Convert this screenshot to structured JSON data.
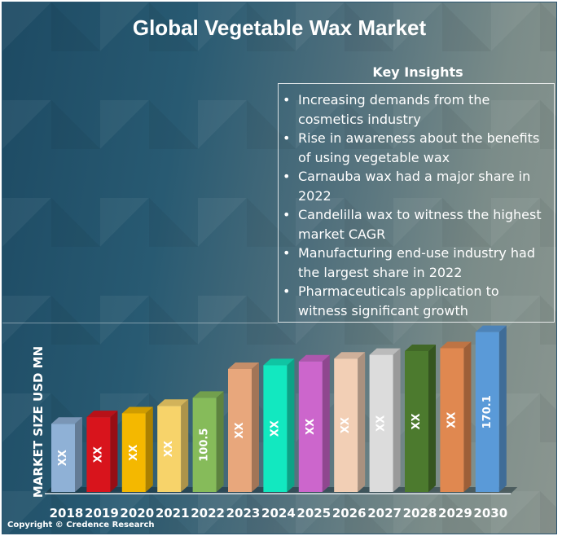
{
  "title": "Global Vegetable Wax Market",
  "key_insights": {
    "heading": "Key Insights",
    "items": [
      "Increasing demands from the cosmetics industry",
      "Rise in awareness about the benefits of using vegetable wax",
      "Carnauba wax had a major share in 2022",
      "Candelilla wax to witness the highest market CAGR",
      "Manufacturing end-use industry had the largest share in 2022",
      "Pharmaceuticals application to witness significant growth"
    ]
  },
  "copyright": "Copyright © Credence Research",
  "chart_data": {
    "type": "bar",
    "style": "3d",
    "title": "",
    "xlabel": "",
    "ylabel": "MARKET SIZE USD MN",
    "categories": [
      "2018",
      "2019",
      "2020",
      "2021",
      "2022",
      "2023",
      "2024",
      "2025",
      "2026",
      "2027",
      "2028",
      "2029",
      "2030"
    ],
    "values": [
      73,
      80,
      84,
      92,
      100.5,
      131,
      135,
      139,
      142,
      146,
      150,
      153,
      170.1
    ],
    "data_labels": [
      "XX",
      "XX",
      "XX",
      "XX",
      "100.5",
      "XX",
      "XX",
      "XX",
      "XX",
      "XX",
      "XX",
      "XX",
      "170.1"
    ],
    "colors": [
      "#8fb1d6",
      "#d8141c",
      "#f4b800",
      "#f7d36a",
      "#86bb5a",
      "#e8a77c",
      "#12e8c0",
      "#cc66cc",
      "#f2cfb5",
      "#dcdcdc",
      "#4c7a2e",
      "#e08850",
      "#5a9ad8"
    ],
    "ylim": [
      37,
      175
    ],
    "grid": false,
    "legend": "none"
  }
}
